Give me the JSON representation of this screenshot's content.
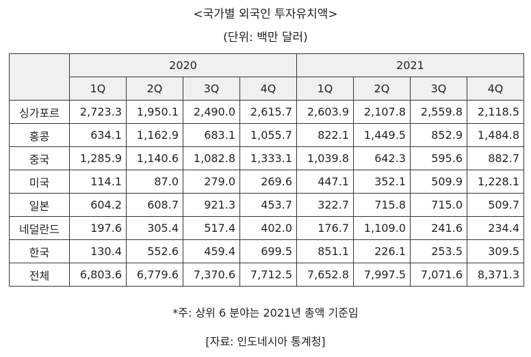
{
  "title": "<국가별 외국인 투자유치액>",
  "unit": "(단위: 백만 달러)",
  "years": [
    "2020",
    "2021"
  ],
  "quarters": [
    "1Q",
    "2Q",
    "3Q",
    "4Q",
    "1Q",
    "2Q",
    "3Q",
    "4Q"
  ],
  "rows": [
    {
      "label": "싱가포르",
      "values": [
        "2,723.3",
        "1,950.1",
        "2,490.0",
        "2,615.7",
        "2,603.9",
        "2,107.8",
        "2,559.8",
        "2,118.5"
      ]
    },
    {
      "label": "홍콩",
      "values": [
        "634.1",
        "1,162.9",
        "683.1",
        "1,055.7",
        "822.1",
        "1,449.5",
        "852.9",
        "1,484.8"
      ]
    },
    {
      "label": "중국",
      "values": [
        "1,285.9",
        "1,140.6",
        "1,082.8",
        "1,333.1",
        "1,039.8",
        "642.3",
        "595.6",
        "882.7"
      ]
    },
    {
      "label": "미국",
      "values": [
        "114.1",
        "87.0",
        "279.0",
        "269.6",
        "447.1",
        "352.1",
        "509.9",
        "1,228.1"
      ]
    },
    {
      "label": "일본",
      "values": [
        "604.2",
        "608.7",
        "921.3",
        "453.7",
        "322.7",
        "715.8",
        "715.0",
        "509.7"
      ]
    },
    {
      "label": "네덜란드",
      "values": [
        "197.6",
        "305.4",
        "517.4",
        "402.0",
        "176.7",
        "1,109.0",
        "241.6",
        "234.4"
      ]
    },
    {
      "label": "한국",
      "values": [
        "130.4",
        "552.6",
        "459.4",
        "699.5",
        "851.1",
        "226.1",
        "253.5",
        "309.5"
      ]
    },
    {
      "label": "전체",
      "values": [
        "6,803.6",
        "6,779.6",
        "7,370.6",
        "7,712.5",
        "7,652.8",
        "7,997.5",
        "7,071.6",
        "8,371.3"
      ]
    }
  ],
  "note": "*주: 상위 6 분야는 2021년 총액 기준임",
  "source": "[자료: 인도네시아 통계청]",
  "colors": {
    "header_bg": "#f0f0f0",
    "border": "#333333",
    "text": "#222222"
  }
}
